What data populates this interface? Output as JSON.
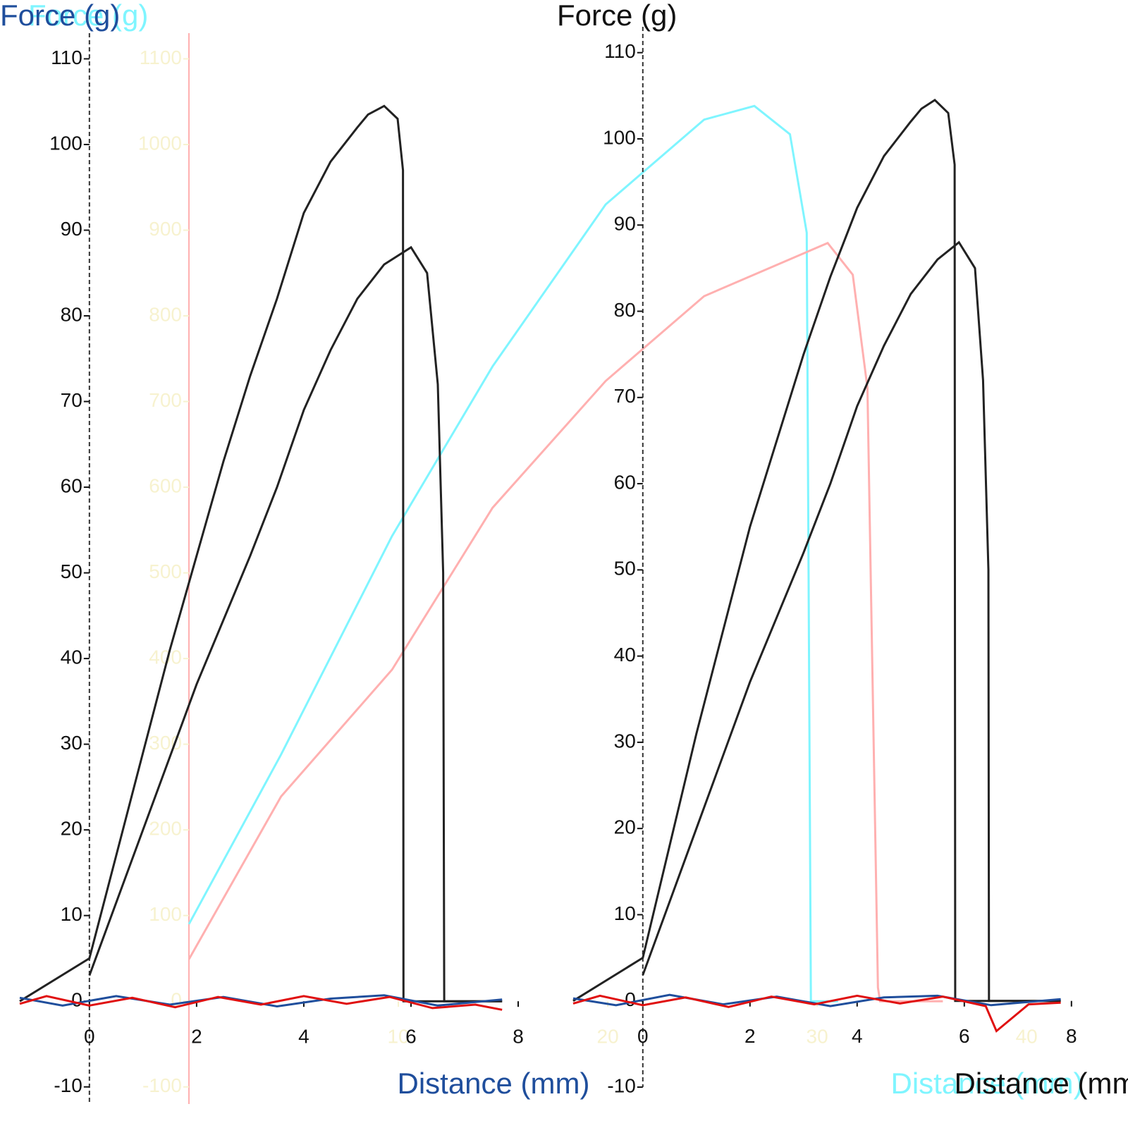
{
  "chart_data": [
    {
      "type": "line",
      "y_label": "Force (g)",
      "x_label": "Distance (mm)",
      "axis_color": "#f7f2cf",
      "label_color": "#7ff5ff",
      "xlim": [
        0,
        44
      ],
      "ylim": [
        -120,
        1130
      ],
      "xticks": [
        10,
        20,
        30,
        40
      ],
      "yticks": [
        -100,
        0,
        100,
        200,
        300,
        400,
        500,
        600,
        700,
        800,
        900,
        1000,
        1100
      ],
      "series": [
        {
          "color": "#7ff5ff",
          "x": [
            0,
            4.4,
            9.7,
            14.5,
            19.9,
            24.6,
            27,
            28.7,
            29.5,
            29.7,
            29.8,
            31
          ],
          "values": [
            90,
            288,
            543,
            741,
            930,
            1029,
            1045,
            1012,
            897,
            0,
            0,
            0
          ]
        },
        {
          "color": "#ffb0b0",
          "x": [
            0,
            4.4,
            9.7,
            14.5,
            19.9,
            24.6,
            30.5,
            31.7,
            32.4,
            32.9,
            33,
            36
          ],
          "values": [
            49,
            239,
            387,
            576,
            724,
            823,
            885,
            848,
            716,
            16,
            0,
            0
          ]
        }
      ]
    },
    {
      "type": "line",
      "y_label": "Force (g)",
      "x_label": "Distance (mm)",
      "axis_color": "#111111",
      "label_color": "#1f4e9c",
      "xlim": [
        -1.3,
        8
      ],
      "ylim": [
        -12,
        113
      ],
      "xticks": [
        0,
        2,
        4,
        6,
        8
      ],
      "yticks": [
        -10,
        0,
        10,
        20,
        30,
        40,
        50,
        60,
        70,
        80,
        90,
        100,
        110
      ],
      "series": [
        {
          "color": "#222222",
          "x": [
            -1.3,
            0,
            0.5,
            1,
            1.5,
            2,
            2.5,
            3,
            3.5,
            4,
            4.5,
            5,
            5.2,
            5.5,
            5.75,
            5.85,
            5.86,
            7.7
          ],
          "values": [
            0,
            5,
            17,
            29,
            41,
            52,
            63,
            73,
            82,
            92,
            98,
            102,
            103.5,
            104.5,
            103,
            97,
            0,
            0
          ]
        },
        {
          "color": "#222222",
          "x": [
            0,
            1,
            2,
            3,
            3.5,
            4,
            4.5,
            5,
            5.5,
            6,
            6.3,
            6.5,
            6.6,
            6.62,
            7.7
          ],
          "values": [
            3,
            20,
            37,
            52,
            60,
            69,
            76,
            82,
            86,
            88,
            85,
            72,
            50,
            0,
            0
          ]
        },
        {
          "color": "#1f4e9c",
          "x": [
            -1.3,
            -0.5,
            0.5,
            1.5,
            2.5,
            3.5,
            4.5,
            5.5,
            6.5,
            7.7
          ],
          "values": [
            0.4,
            -0.5,
            0.6,
            -0.4,
            0.5,
            -0.6,
            0.3,
            0.7,
            -0.5,
            0.2
          ]
        },
        {
          "color": "#e01010",
          "x": [
            -1.3,
            -0.8,
            0,
            0.8,
            1.6,
            2.4,
            3.2,
            4,
            4.8,
            5.6,
            6.4,
            7.2,
            7.7
          ],
          "values": [
            -0.3,
            0.6,
            -0.5,
            0.4,
            -0.7,
            0.5,
            -0.4,
            0.6,
            -0.3,
            0.5,
            -0.8,
            -0.4,
            -1
          ]
        }
      ]
    },
    {
      "type": "line",
      "y_label": "Force (g)",
      "x_label": "Distance (mm)",
      "axis_color": "#111111",
      "label_color": "#111111",
      "xlim": [
        -1.3,
        8.2
      ],
      "ylim": [
        -10,
        113
      ],
      "xticks": [
        0,
        2,
        4,
        6,
        8
      ],
      "yticks": [
        -10,
        0,
        10,
        20,
        30,
        40,
        50,
        60,
        70,
        80,
        90,
        100,
        110
      ],
      "series": [
        {
          "color": "#222222",
          "x": [
            -1.3,
            0,
            0.5,
            1,
            1.5,
            2,
            2.5,
            3,
            3.5,
            4,
            4.5,
            5,
            5.2,
            5.45,
            5.7,
            5.82,
            5.83,
            7.8
          ],
          "values": [
            0,
            5,
            18,
            31,
            43,
            55,
            65,
            75,
            84,
            92,
            98,
            102,
            103.5,
            104.5,
            103,
            97,
            0,
            0
          ]
        },
        {
          "color": "#222222",
          "x": [
            0,
            1,
            2,
            3,
            3.5,
            4,
            4.5,
            5,
            5.5,
            5.9,
            6.2,
            6.35,
            6.45,
            6.46,
            7.8
          ],
          "values": [
            3,
            20,
            37,
            52,
            60,
            69,
            76,
            82,
            86,
            88,
            85,
            72,
            50,
            0,
            0
          ]
        },
        {
          "color": "#1f4e9c",
          "x": [
            -1.3,
            -0.5,
            0.5,
            1.5,
            2.5,
            3.5,
            4.5,
            5.5,
            6.5,
            7.8
          ],
          "values": [
            0.3,
            -0.5,
            0.7,
            -0.4,
            0.5,
            -0.6,
            0.4,
            0.6,
            -0.5,
            0.2
          ]
        },
        {
          "color": "#e01010",
          "x": [
            -1.3,
            -0.8,
            0,
            0.8,
            1.6,
            2.4,
            3.2,
            4,
            4.8,
            5.6,
            6.4,
            6.6,
            7.2,
            7.8
          ],
          "values": [
            -0.3,
            0.6,
            -0.5,
            0.4,
            -0.7,
            0.5,
            -0.4,
            0.6,
            -0.3,
            0.5,
            -0.6,
            -3.5,
            -0.4,
            -0.2
          ]
        }
      ]
    }
  ]
}
